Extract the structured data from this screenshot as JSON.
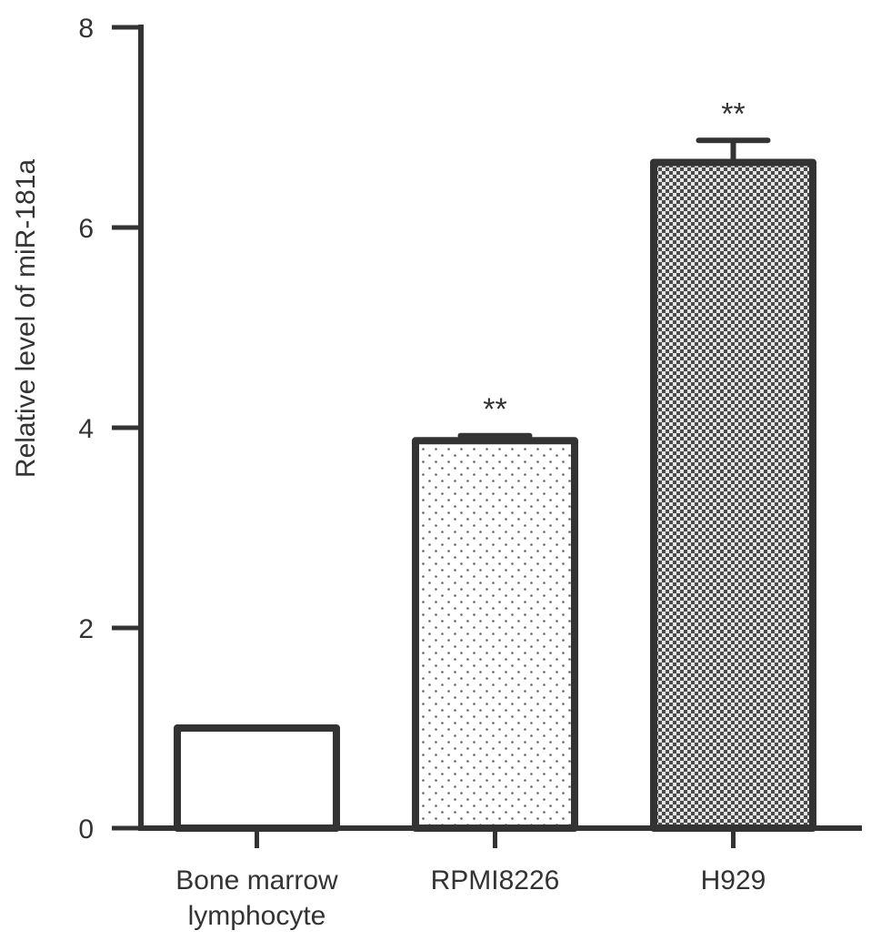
{
  "chart_data": {
    "type": "bar",
    "categories": [
      "Bone marrow lymphocyte",
      "RPMI8226",
      "H929"
    ],
    "category_lines": [
      [
        "Bone marrow",
        "lymphocyte"
      ],
      [
        "RPMI8226"
      ],
      [
        "H929"
      ]
    ],
    "values": [
      1.0,
      3.87,
      6.65
    ],
    "errors": [
      0,
      0.05,
      0.22
    ],
    "annotations": [
      "",
      "**",
      "**"
    ],
    "fills": [
      "none",
      "dots",
      "checker"
    ],
    "title": "",
    "xlabel": "",
    "ylabel": "Relative level of miR-181a",
    "ylim": [
      0,
      8
    ],
    "yticks": [
      0,
      2,
      4,
      6,
      8
    ],
    "ytick_labels": [
      "0",
      "2",
      "4",
      "6",
      "8"
    ],
    "grid": false,
    "legend": "none",
    "colors": {
      "stroke": "#333333",
      "text": "#333333",
      "background": "#ffffff"
    }
  }
}
